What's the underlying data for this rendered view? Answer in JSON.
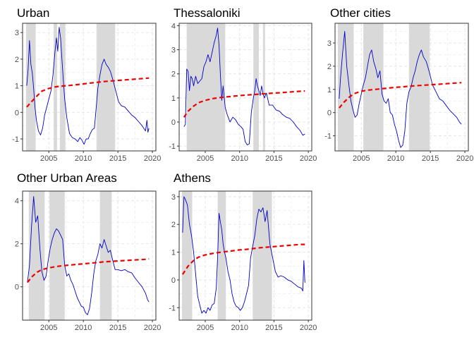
{
  "chart_data": [
    {
      "type": "line",
      "title": "Urban",
      "xlim": [
        2001.2,
        2020.5
      ],
      "ylim": [
        -1.45,
        3.35
      ],
      "xticks": [
        2005,
        2010,
        2015,
        2020
      ],
      "xtick_labels": [
        "2005",
        "2010",
        "2015",
        "2020"
      ],
      "yticks": [
        -1,
        0,
        1,
        2,
        3
      ],
      "ytick_labels": [
        "-1",
        "0",
        "1",
        "2",
        "3"
      ],
      "grid": true,
      "shaded_periods": [
        [
          2001.7,
          2003.1
        ],
        [
          2005.7,
          2006.2
        ],
        [
          2006.6,
          2007.4
        ],
        [
          2011.9,
          2014.6
        ]
      ],
      "series": [
        {
          "color": "#0000cc",
          "style": "solid",
          "x": [
            2001.8,
            2002.0,
            2002.2,
            2002.4,
            2002.6,
            2002.8,
            2003.0,
            2003.2,
            2003.5,
            2003.8,
            2004.1,
            2004.4,
            2004.7,
            2005.0,
            2005.3,
            2005.6,
            2005.9,
            2006.1,
            2006.3,
            2006.5,
            2006.7,
            2006.9,
            2007.1,
            2007.3,
            2007.6,
            2008.0,
            2008.4,
            2008.8,
            2009.2,
            2009.5,
            2009.8,
            2010.1,
            2010.4,
            2010.7,
            2011.0,
            2011.3,
            2011.6,
            2011.9,
            2012.1,
            2012.4,
            2012.7,
            2013.0,
            2013.3,
            2013.6,
            2013.9,
            2014.3,
            2014.7,
            2015.1,
            2015.5,
            2016.0,
            2016.5,
            2017.0,
            2017.5,
            2018.0,
            2018.5,
            2019.0,
            2019.2,
            2019.35,
            2019.5
          ],
          "y": [
            1.0,
            1.6,
            2.7,
            1.8,
            1.5,
            0.9,
            0.2,
            -0.3,
            -0.7,
            -0.85,
            -0.6,
            -0.1,
            0.2,
            0.5,
            0.8,
            1.4,
            2.3,
            2.8,
            2.3,
            3.2,
            2.8,
            2.0,
            1.2,
            0.5,
            -0.2,
            -0.8,
            -0.95,
            -1.0,
            -1.1,
            -0.95,
            -1.05,
            -1.2,
            -1.0,
            -1.0,
            -0.8,
            -0.65,
            -0.6,
            0.3,
            0.9,
            1.4,
            1.8,
            2.0,
            1.8,
            1.7,
            1.55,
            1.2,
            0.8,
            0.4,
            0.25,
            0.2,
            0.05,
            -0.1,
            -0.2,
            -0.35,
            -0.5,
            -0.7,
            -0.3,
            -0.75,
            -0.6
          ]
        },
        {
          "color": "#ee0000",
          "style": "dashed",
          "x": [
            2001.8,
            2002.5,
            2003.3,
            2004.0,
            2005.0,
            2006.0,
            2007.0,
            2008.0,
            2009.0,
            2010.0,
            2011.0,
            2012.0,
            2013.0,
            2014.0,
            2015.0,
            2016.0,
            2017.0,
            2018.0,
            2019.0,
            2019.5
          ],
          "y": [
            0.2,
            0.4,
            0.62,
            0.8,
            0.9,
            0.96,
            0.99,
            1.01,
            1.04,
            1.07,
            1.1,
            1.13,
            1.16,
            1.18,
            1.2,
            1.22,
            1.24,
            1.26,
            1.28,
            1.29
          ]
        }
      ]
    },
    {
      "type": "line",
      "title": "Thessaloniki",
      "xlim": [
        2001.2,
        2020.5
      ],
      "ylim": [
        -1.2,
        4.1
      ],
      "xticks": [
        2005,
        2010,
        2015,
        2020
      ],
      "xtick_labels": [
        "2005",
        "2010",
        "2015",
        "2020"
      ],
      "yticks": [
        -1,
        0,
        1,
        2,
        3,
        4
      ],
      "ytick_labels": [
        "-1",
        "0",
        "1",
        "2",
        "3",
        "4"
      ],
      "grid": true,
      "shaded_periods": [
        [
          2002.3,
          2007.9
        ],
        [
          2012.0,
          2012.8
        ],
        [
          2013.4,
          2013.7
        ]
      ],
      "series": [
        {
          "color": "#0000cc",
          "style": "solid",
          "x": [
            2001.9,
            2002.1,
            2002.3,
            2002.5,
            2002.7,
            2002.9,
            2003.1,
            2003.3,
            2003.6,
            2003.9,
            2004.2,
            2004.5,
            2004.8,
            2005.1,
            2005.4,
            2005.7,
            2006.0,
            2006.3,
            2006.6,
            2006.8,
            2007.0,
            2007.2,
            2007.4,
            2007.6,
            2007.9,
            2008.2,
            2008.6,
            2009.0,
            2009.4,
            2009.8,
            2010.2,
            2010.5,
            2010.8,
            2011.1,
            2011.4,
            2011.7,
            2012.0,
            2012.2,
            2012.4,
            2012.6,
            2012.8,
            2013.0,
            2013.2,
            2013.4,
            2013.6,
            2013.9,
            2014.3,
            2014.8,
            2015.3,
            2015.8,
            2016.3,
            2016.8,
            2017.3,
            2017.8,
            2018.3,
            2018.8,
            2019.2,
            2019.5
          ],
          "y": [
            -0.2,
            -0.1,
            2.2,
            2.1,
            1.3,
            1.9,
            1.8,
            1.5,
            1.9,
            1.6,
            1.7,
            1.8,
            2.3,
            2.5,
            2.8,
            2.5,
            2.9,
            3.3,
            3.6,
            3.9,
            3.2,
            2.0,
            0.9,
            1.5,
            0.6,
            0.3,
            0.0,
            0.2,
            0.1,
            -0.1,
            -0.2,
            -0.3,
            -0.8,
            -0.95,
            -0.9,
            0.4,
            1.0,
            1.3,
            1.8,
            1.5,
            1.3,
            1.1,
            1.5,
            1.2,
            1.0,
            1.2,
            0.7,
            0.7,
            0.5,
            0.45,
            0.3,
            0.2,
            0.15,
            0.0,
            -0.2,
            -0.35,
            -0.55,
            -0.5
          ]
        },
        {
          "color": "#ee0000",
          "style": "dashed",
          "x": [
            2001.9,
            2002.5,
            2003.3,
            2004.0,
            2005.0,
            2006.0,
            2007.0,
            2008.0,
            2009.0,
            2010.0,
            2011.0,
            2012.0,
            2013.0,
            2014.0,
            2015.0,
            2016.0,
            2017.0,
            2018.0,
            2019.0,
            2019.5
          ],
          "y": [
            0.2,
            0.45,
            0.66,
            0.8,
            0.9,
            0.97,
            1.01,
            1.04,
            1.07,
            1.1,
            1.12,
            1.14,
            1.16,
            1.18,
            1.2,
            1.22,
            1.24,
            1.26,
            1.28,
            1.29
          ]
        }
      ]
    },
    {
      "type": "line",
      "title": "Other cities",
      "xlim": [
        2001.2,
        2020.5
      ],
      "ylim": [
        -1.65,
        3.85
      ],
      "xticks": [
        2005,
        2010,
        2015,
        2020
      ],
      "xtick_labels": [
        "2005",
        "2010",
        "2015",
        "2020"
      ],
      "yticks": [
        -1,
        0,
        1,
        2,
        3
      ],
      "ytick_labels": [
        "-1",
        "0",
        "1",
        "2",
        "3"
      ],
      "grid": true,
      "shaded_periods": [
        [
          2001.6,
          2003.9
        ],
        [
          2005.3,
          2008.2
        ],
        [
          2011.9,
          2014.9
        ]
      ],
      "series": [
        {
          "color": "#0000cc",
          "style": "solid",
          "x": [
            2001.8,
            2002.0,
            2002.3,
            2002.6,
            2002.9,
            2003.2,
            2003.5,
            2003.8,
            2004.1,
            2004.4,
            2004.7,
            2005.0,
            2005.3,
            2005.6,
            2005.9,
            2006.2,
            2006.5,
            2006.8,
            2007.1,
            2007.4,
            2007.7,
            2008.0,
            2008.3,
            2008.6,
            2008.9,
            2009.2,
            2009.5,
            2009.8,
            2010.1,
            2010.4,
            2010.7,
            2011.0,
            2011.3,
            2011.6,
            2011.9,
            2012.2,
            2012.5,
            2012.8,
            2013.1,
            2013.4,
            2013.7,
            2014.0,
            2014.4,
            2014.8,
            2015.3,
            2015.8,
            2016.3,
            2016.8,
            2017.3,
            2017.8,
            2018.3,
            2018.8,
            2019.2,
            2019.5
          ],
          "y": [
            0.6,
            1.5,
            2.6,
            3.5,
            2.0,
            1.2,
            0.5,
            0.1,
            -0.2,
            -0.1,
            0.4,
            0.8,
            1.2,
            1.5,
            2.0,
            2.5,
            2.7,
            2.2,
            1.9,
            1.5,
            1.8,
            0.8,
            0.5,
            0.4,
            0.6,
            0.0,
            -0.1,
            -0.5,
            -0.8,
            -1.2,
            -1.5,
            -1.4,
            -0.8,
            0.4,
            0.9,
            1.1,
            1.5,
            1.8,
            2.2,
            2.5,
            2.7,
            2.4,
            2.2,
            1.8,
            1.2,
            0.9,
            0.6,
            0.5,
            0.3,
            0.1,
            -0.05,
            -0.2,
            -0.4,
            -0.5
          ]
        },
        {
          "color": "#ee0000",
          "style": "dashed",
          "x": [
            2001.8,
            2002.5,
            2003.3,
            2004.0,
            2005.0,
            2006.0,
            2007.0,
            2008.0,
            2009.0,
            2010.0,
            2011.0,
            2012.0,
            2013.0,
            2014.0,
            2015.0,
            2016.0,
            2017.0,
            2018.0,
            2019.0,
            2019.5
          ],
          "y": [
            0.2,
            0.45,
            0.68,
            0.82,
            0.92,
            0.97,
            1.0,
            1.03,
            1.06,
            1.09,
            1.11,
            1.14,
            1.16,
            1.18,
            1.2,
            1.22,
            1.24,
            1.26,
            1.28,
            1.29
          ]
        }
      ]
    },
    {
      "type": "line",
      "title": "Other Urban Areas",
      "xlim": [
        2001.2,
        2020.5
      ],
      "ylim": [
        -1.55,
        4.45
      ],
      "xticks": [
        2005,
        2010,
        2015,
        2020
      ],
      "xtick_labels": [
        "2005",
        "2010",
        "2015",
        "2020"
      ],
      "yticks": [
        0,
        2,
        4
      ],
      "ytick_labels": [
        "0",
        "2",
        "4"
      ],
      "grid": true,
      "shaded_periods": [
        [
          2002.1,
          2004.4
        ],
        [
          2005.1,
          2007.3
        ],
        [
          2012.4,
          2014.1
        ]
      ],
      "series": [
        {
          "color": "#0000cc",
          "style": "solid",
          "x": [
            2001.9,
            2002.2,
            2002.5,
            2002.8,
            2003.1,
            2003.4,
            2003.7,
            2004.0,
            2004.3,
            2004.6,
            2004.9,
            2005.2,
            2005.5,
            2005.8,
            2006.1,
            2006.4,
            2006.7,
            2007.0,
            2007.3,
            2007.6,
            2007.9,
            2008.2,
            2008.5,
            2008.8,
            2009.1,
            2009.4,
            2009.7,
            2010.0,
            2010.3,
            2010.6,
            2010.9,
            2011.2,
            2011.5,
            2011.8,
            2012.1,
            2012.4,
            2012.7,
            2013.0,
            2013.3,
            2013.6,
            2013.9,
            2014.2,
            2014.6,
            2015.0,
            2015.5,
            2016.0,
            2016.5,
            2017.0,
            2017.5,
            2018.0,
            2018.5,
            2019.0,
            2019.3,
            2019.5
          ],
          "y": [
            0.2,
            1.0,
            2.8,
            4.2,
            3.0,
            3.3,
            1.8,
            0.7,
            0.3,
            0.5,
            1.2,
            1.8,
            2.2,
            2.5,
            2.7,
            2.6,
            2.4,
            2.2,
            1.0,
            0.5,
            0.6,
            0.3,
            0.1,
            -0.2,
            -0.5,
            -0.7,
            -0.9,
            -0.95,
            -1.2,
            -1.3,
            -1.0,
            -0.3,
            0.6,
            1.2,
            1.5,
            2.0,
            1.8,
            2.2,
            1.9,
            1.6,
            1.7,
            1.3,
            0.8,
            0.8,
            0.75,
            0.8,
            0.7,
            0.65,
            0.4,
            0.2,
            0.0,
            -0.3,
            -0.6,
            -0.7
          ]
        },
        {
          "color": "#ee0000",
          "style": "dashed",
          "x": [
            2001.9,
            2002.5,
            2003.3,
            2004.0,
            2005.0,
            2006.0,
            2007.0,
            2008.0,
            2009.0,
            2010.0,
            2011.0,
            2012.0,
            2013.0,
            2014.0,
            2015.0,
            2016.0,
            2017.0,
            2018.0,
            2019.0,
            2019.5
          ],
          "y": [
            0.2,
            0.45,
            0.68,
            0.8,
            0.88,
            0.94,
            0.98,
            1.01,
            1.04,
            1.07,
            1.1,
            1.13,
            1.16,
            1.18,
            1.2,
            1.22,
            1.24,
            1.26,
            1.28,
            1.3
          ]
        }
      ]
    },
    {
      "type": "line",
      "title": "Athens",
      "xlim": [
        2001.2,
        2020.5
      ],
      "ylim": [
        -1.45,
        3.2
      ],
      "xticks": [
        2005,
        2010,
        2015,
        2020
      ],
      "xtick_labels": [
        "2005",
        "2010",
        "2015",
        "2020"
      ],
      "yticks": [
        -1,
        0,
        1,
        2,
        3
      ],
      "ytick_labels": [
        "-1",
        "0",
        "1",
        "2",
        "3"
      ],
      "grid": true,
      "shaded_periods": [
        [
          2001.6,
          2003.1
        ],
        [
          2006.8,
          2008.0
        ],
        [
          2011.9,
          2014.7
        ]
      ],
      "series": [
        {
          "color": "#0000cc",
          "style": "solid",
          "x": [
            2001.7,
            2001.9,
            2002.1,
            2002.4,
            2002.7,
            2003.0,
            2003.3,
            2003.6,
            2003.9,
            2004.2,
            2004.5,
            2004.8,
            2005.1,
            2005.4,
            2005.7,
            2006.0,
            2006.3,
            2006.6,
            2006.8,
            2007.0,
            2007.2,
            2007.4,
            2007.6,
            2007.8,
            2008.0,
            2008.3,
            2008.6,
            2008.9,
            2009.2,
            2009.5,
            2009.8,
            2010.1,
            2010.4,
            2010.7,
            2011.0,
            2011.3,
            2011.6,
            2011.9,
            2012.2,
            2012.5,
            2012.8,
            2013.1,
            2013.4,
            2013.7,
            2014.0,
            2014.4,
            2014.8,
            2015.2,
            2015.6,
            2016.0,
            2016.5,
            2017.0,
            2017.5,
            2018.0,
            2018.5,
            2019.0,
            2019.2,
            2019.35,
            2019.5
          ],
          "y": [
            1.7,
            3.0,
            2.9,
            2.7,
            2.0,
            1.6,
            1.0,
            0.2,
            -0.6,
            -0.9,
            -1.2,
            -1.1,
            -1.2,
            -1.0,
            -1.1,
            -0.9,
            -0.85,
            -0.3,
            0.8,
            2.4,
            2.1,
            1.8,
            1.3,
            1.0,
            0.8,
            0.3,
            0.0,
            -0.5,
            -0.8,
            -0.95,
            -1.0,
            -1.1,
            -1.0,
            -0.8,
            -0.5,
            -0.2,
            0.8,
            1.2,
            1.6,
            2.2,
            2.55,
            2.45,
            2.6,
            2.1,
            2.5,
            1.3,
            0.8,
            0.3,
            0.1,
            0.15,
            0.1,
            0.0,
            -0.05,
            -0.15,
            -0.25,
            -0.3,
            -0.4,
            0.7,
            -0.1
          ]
        },
        {
          "color": "#ee0000",
          "style": "dashed",
          "x": [
            2001.7,
            2002.5,
            2003.3,
            2004.0,
            2005.0,
            2006.0,
            2007.0,
            2008.0,
            2009.0,
            2010.0,
            2011.0,
            2012.0,
            2013.0,
            2014.0,
            2015.0,
            2016.0,
            2017.0,
            2018.0,
            2019.0,
            2019.5
          ],
          "y": [
            0.2,
            0.5,
            0.7,
            0.82,
            0.9,
            0.95,
            0.99,
            1.02,
            1.05,
            1.08,
            1.1,
            1.13,
            1.16,
            1.18,
            1.2,
            1.22,
            1.24,
            1.26,
            1.28,
            1.28
          ]
        }
      ]
    }
  ]
}
